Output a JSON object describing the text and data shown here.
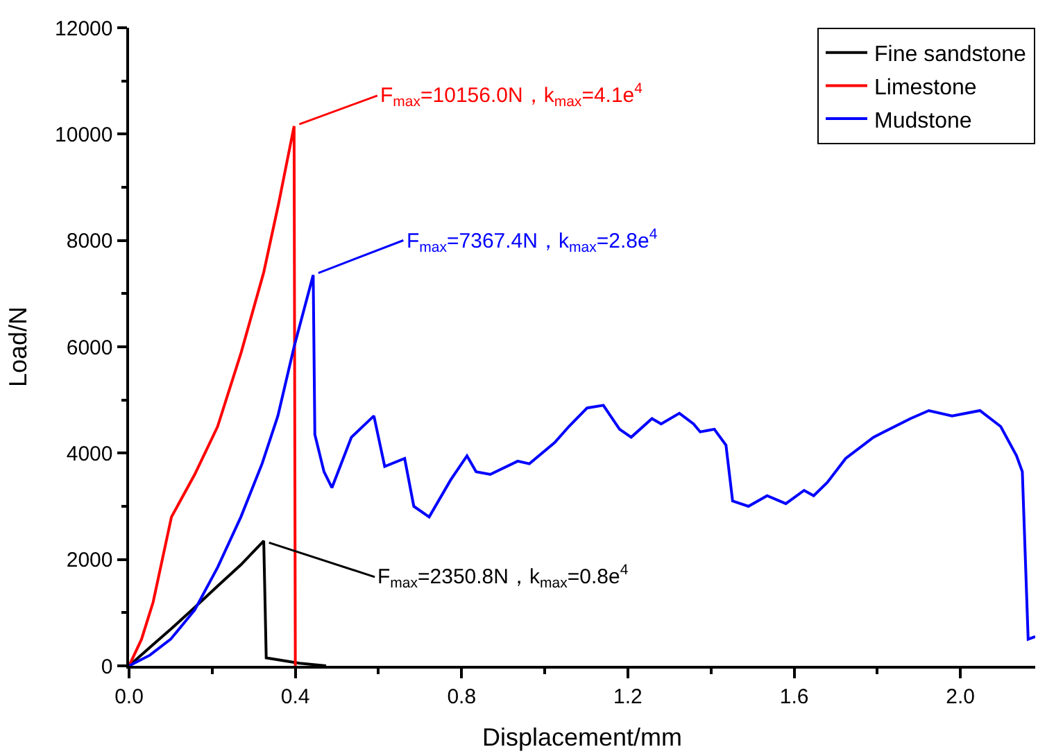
{
  "chart_data": {
    "type": "line",
    "xlabel": "Displacement/mm",
    "ylabel": "Load/N",
    "xlim": [
      0,
      2.18
    ],
    "ylim": [
      0,
      12000
    ],
    "xticks": [
      {
        "value": 0,
        "label": "0.0"
      },
      {
        "value": 0.2,
        "label": null
      },
      {
        "value": 0.4,
        "label": "0.4"
      },
      {
        "value": 0.6,
        "label": null
      },
      {
        "value": 0.8,
        "label": "0.8"
      },
      {
        "value": 1.0,
        "label": null
      },
      {
        "value": 1.2,
        "label": "1.2"
      },
      {
        "value": 1.4,
        "label": null
      },
      {
        "value": 1.6,
        "label": "1.6"
      },
      {
        "value": 1.8,
        "label": null
      },
      {
        "value": 2.0,
        "label": "2.0"
      }
    ],
    "yticks": [
      0,
      {
        "value": 1000,
        "label": null
      },
      2000,
      {
        "value": 3000,
        "label": null
      },
      4000,
      {
        "value": 5000,
        "label": null
      },
      6000,
      {
        "value": 7000,
        "label": null
      },
      8000,
      {
        "value": 9000,
        "label": null
      },
      10000,
      {
        "value": 11000,
        "label": null
      },
      12000
    ],
    "legend": "top right",
    "marker": "none",
    "line_style": "solid",
    "series": [
      {
        "name": "Fine sandstone",
        "color": "#000000",
        "x": [
          0,
          0.058,
          0.102,
          0.158,
          0.213,
          0.269,
          0.324,
          0.33,
          0.41,
          0.474
        ],
        "values": [
          0,
          400,
          700,
          1100,
          1500,
          1900,
          2350,
          150,
          50,
          0
        ]
      },
      {
        "name": "Limestone",
        "color": "#ff0000",
        "x": [
          0,
          0.03,
          0.058,
          0.102,
          0.158,
          0.213,
          0.27,
          0.324,
          0.36,
          0.397,
          0.4
        ],
        "values": [
          0,
          500,
          1200,
          2800,
          3600,
          4500,
          5900,
          7400,
          8700,
          10150,
          0
        ]
      },
      {
        "name": "Mudstone",
        "color": "#0000ff",
        "x": [
          0,
          0.05,
          0.1,
          0.158,
          0.213,
          0.269,
          0.32,
          0.358,
          0.397,
          0.443,
          0.447,
          0.469,
          0.488,
          0.535,
          0.589,
          0.615,
          0.663,
          0.685,
          0.722,
          0.774,
          0.813,
          0.835,
          0.869,
          0.935,
          0.963,
          1.024,
          1.058,
          1.102,
          1.141,
          1.18,
          1.208,
          1.258,
          1.28,
          1.324,
          1.358,
          1.374,
          1.408,
          1.436,
          1.452,
          1.49,
          1.535,
          1.58,
          1.624,
          1.647,
          1.68,
          1.724,
          1.791,
          1.88,
          1.924,
          1.98,
          2.047,
          2.097,
          2.135,
          2.149,
          2.163,
          2.18
        ],
        "values": [
          0,
          200,
          500,
          1050,
          1850,
          2800,
          3800,
          4700,
          6000,
          7350,
          4350,
          3650,
          3350,
          4300,
          4700,
          3750,
          3900,
          3000,
          2800,
          3500,
          3950,
          3650,
          3600,
          3850,
          3800,
          4200,
          4500,
          4850,
          4900,
          4450,
          4300,
          4650,
          4550,
          4750,
          4550,
          4400,
          4450,
          4150,
          3100,
          3000,
          3200,
          3050,
          3300,
          3200,
          3450,
          3900,
          4300,
          4650,
          4800,
          4700,
          4800,
          4500,
          3950,
          3650,
          500,
          550
        ]
      }
    ],
    "annotations": [
      {
        "text": "F$_{max}$=10156.0N，k$_{max}$=4.1e$^{4}$",
        "x": 0.397,
        "y": 10150
      },
      {
        "text": "F$_{max}$=7367.4N，k$_{max}$=2.8e$^{4}$",
        "x": 0.443,
        "y": 7350
      },
      {
        "text": "F$_{max}$=2350.8N，k$_{max}$=0.8e$^{4}$",
        "x": 0.324,
        "y": 2350
      }
    ]
  }
}
